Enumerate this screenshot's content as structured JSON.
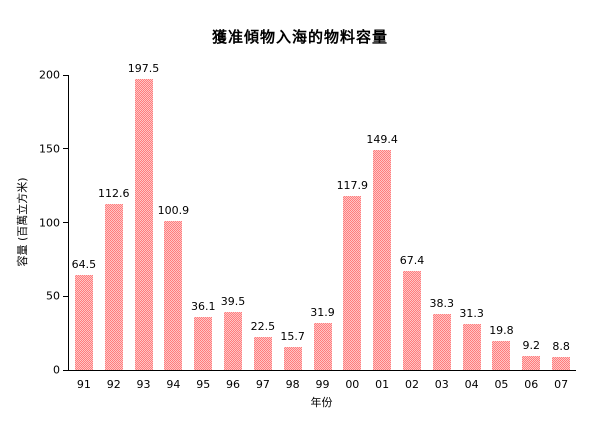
{
  "chart_data": {
    "type": "bar",
    "title": "獲准傾物入海的物料容量",
    "xlabel": "年份",
    "ylabel": "容量 (百萬立方米)",
    "categories": [
      "91",
      "92",
      "93",
      "94",
      "95",
      "96",
      "97",
      "98",
      "99",
      "00",
      "01",
      "02",
      "03",
      "04",
      "05",
      "06",
      "07"
    ],
    "values": [
      64.5,
      112.6,
      197.5,
      100.9,
      36.1,
      39.5,
      22.5,
      15.7,
      31.9,
      117.9,
      149.4,
      67.4,
      38.3,
      31.3,
      19.8,
      9.2,
      8.8
    ],
    "yticks": [
      0,
      50,
      100,
      150,
      200
    ],
    "ylim": [
      0,
      200
    ],
    "grid": false,
    "legend": "none",
    "data_labels": true,
    "colors": {
      "bar_pattern_dark": "#ff7d7d",
      "bar_pattern_light": "#ffc6c6",
      "axis": "#000000",
      "text": "#000000",
      "background": "#ffffff"
    }
  }
}
